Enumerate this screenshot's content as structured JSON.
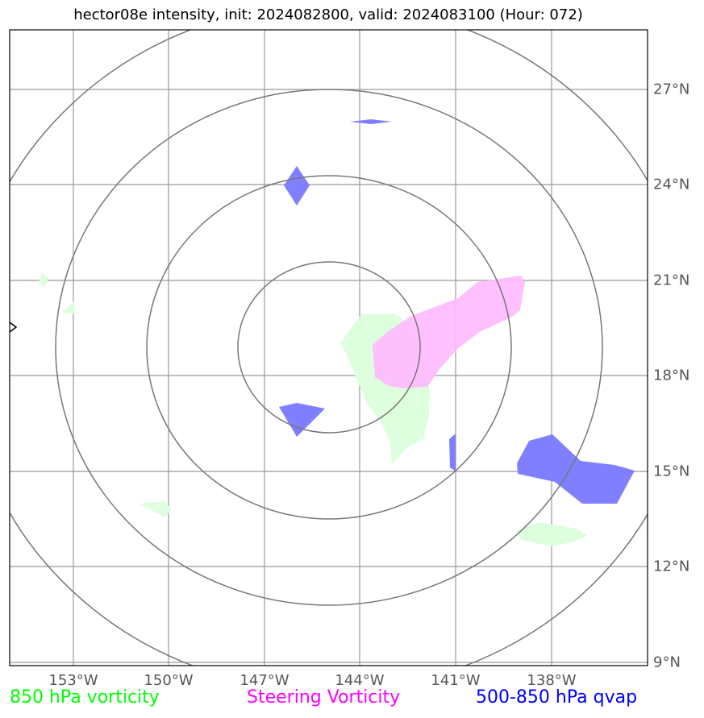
{
  "title": "hector08e intensity, init: 2024082800, valid: 2024083100 (Hour: 072)",
  "map": {
    "lon_labels": [
      "153°W",
      "150°W",
      "147°W",
      "144°W",
      "141°W",
      "138°W"
    ],
    "lat_labels": [
      "27°N",
      "24°N",
      "21°N",
      "18°N",
      "15°N",
      "12°N",
      "9°N"
    ],
    "colors": {
      "vorticity_850": "#ddffdd",
      "steering_vorticity": "#ffbbff",
      "qvap": "#7f7fff",
      "range_rings": "#777777",
      "gridlines": "#999999"
    }
  },
  "legend": {
    "vorticity": {
      "label": "850 hPa vorticity",
      "color": "#00ff00"
    },
    "steering": {
      "label": "Steering Vorticity",
      "color": "#ff00ff"
    },
    "qvap": {
      "label": "500-850 hPa qvap",
      "color": "#0000ff"
    }
  }
}
